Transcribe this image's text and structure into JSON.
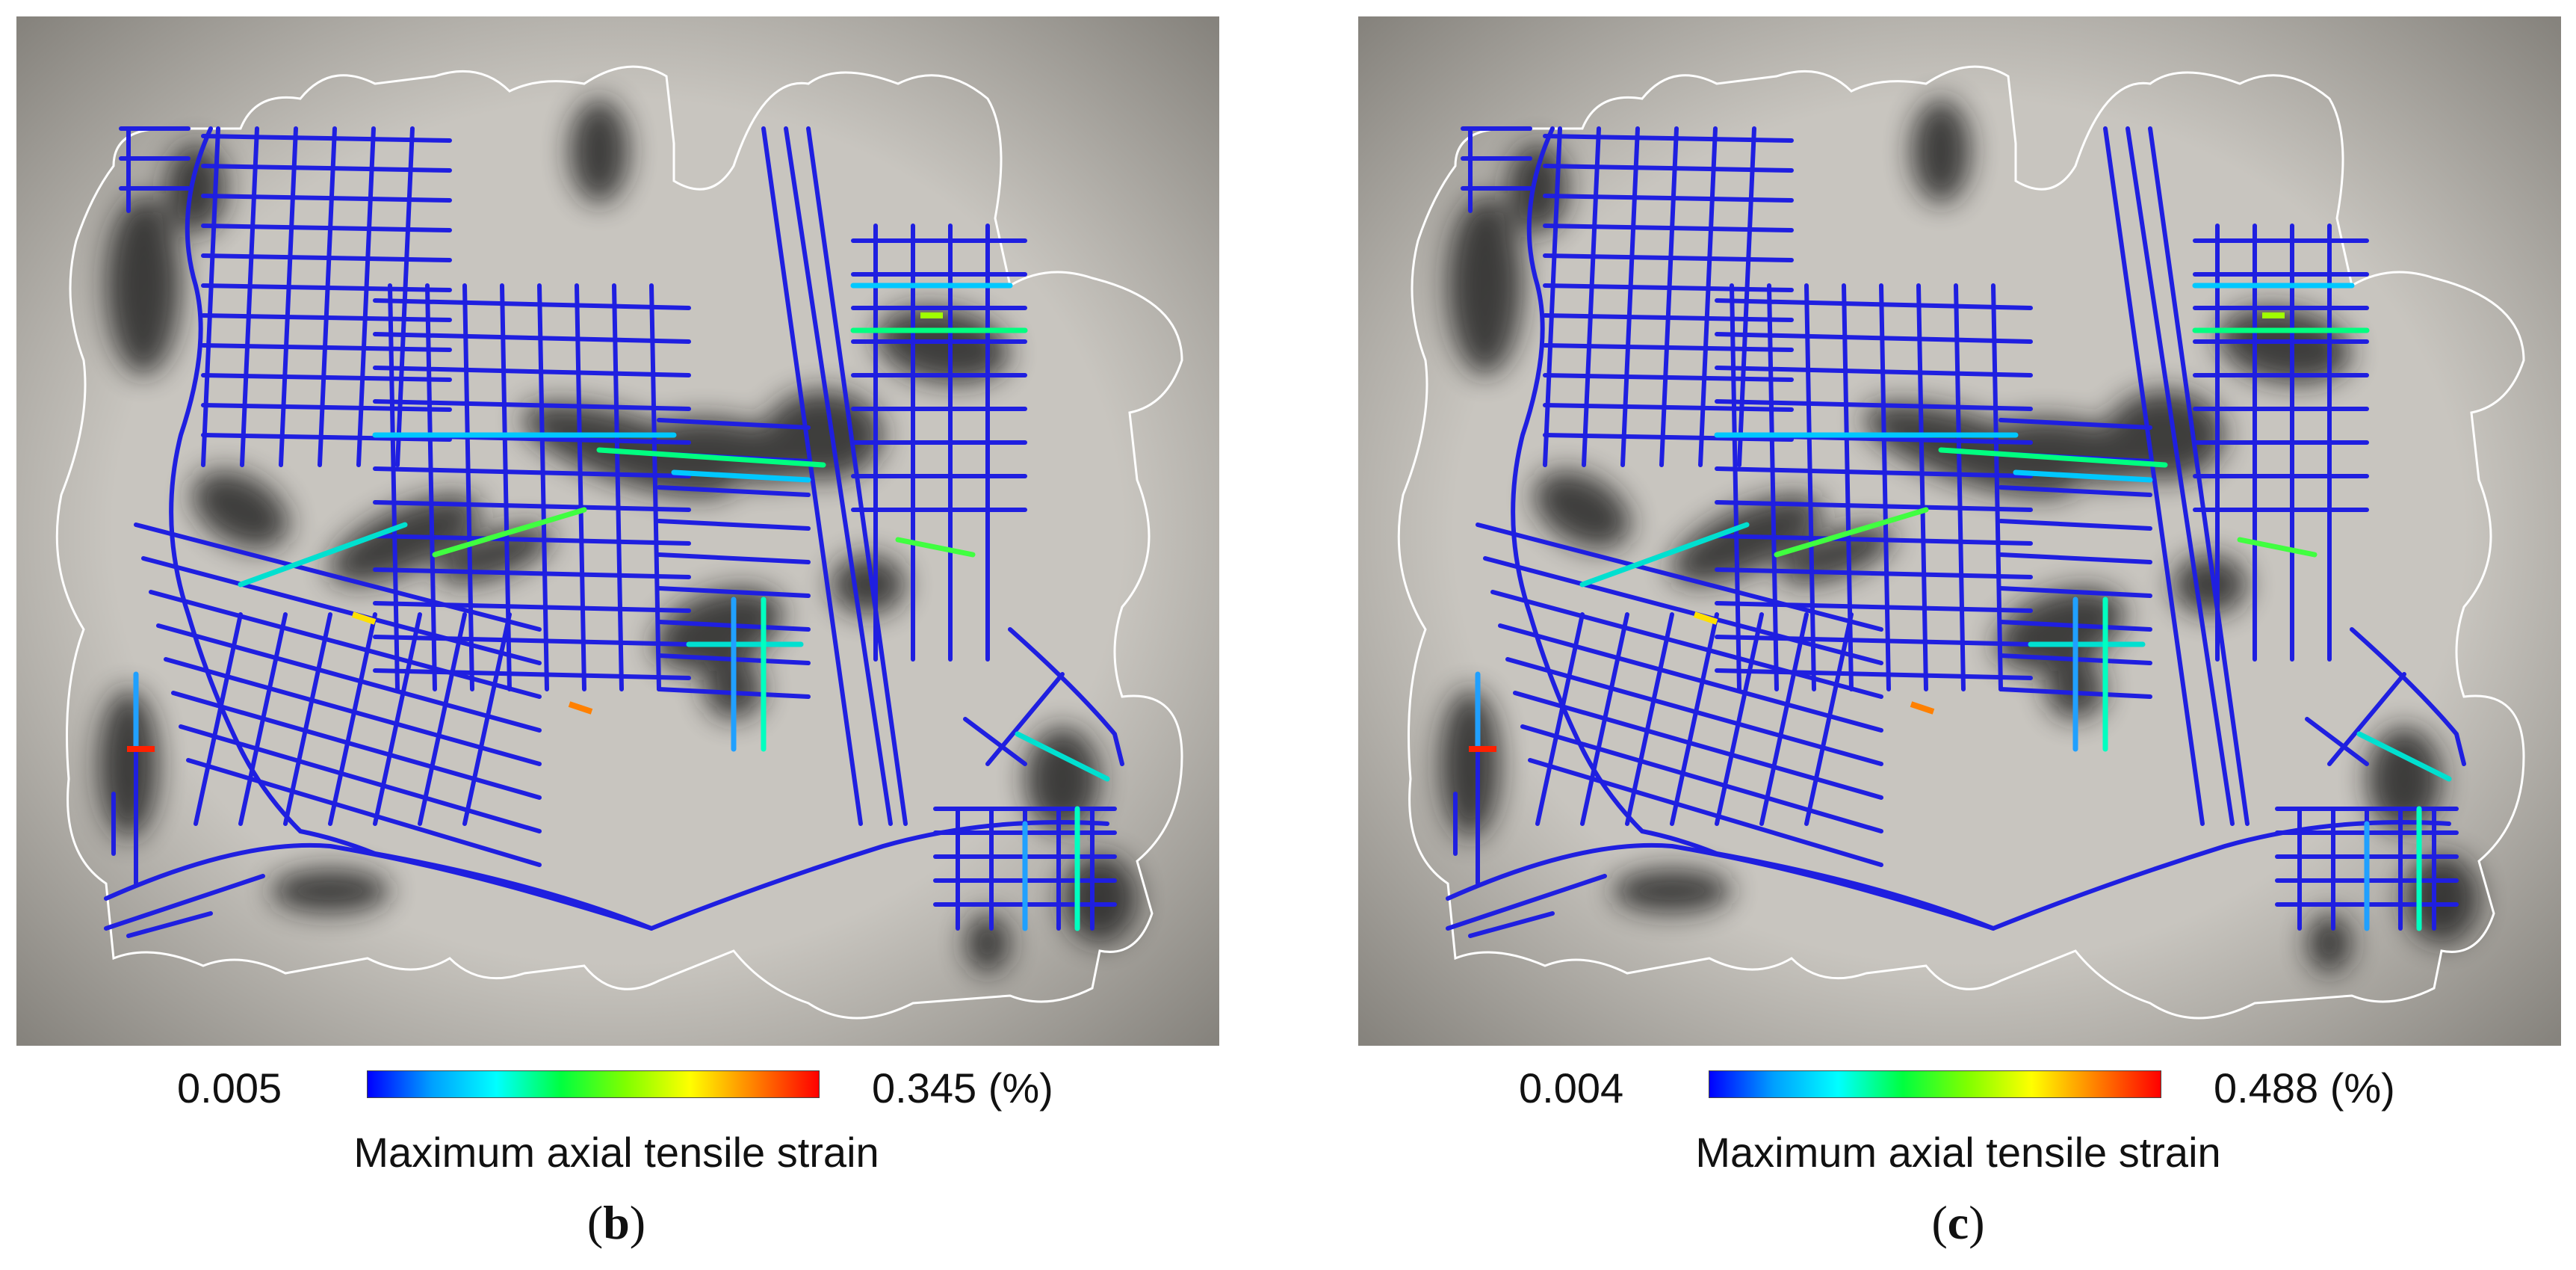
{
  "panels": [
    {
      "id": "b",
      "label_open": "(",
      "label_letter": "b",
      "label_close": ")",
      "legend": {
        "min_label": "0.005",
        "max_label": "0.345 (%)",
        "title": "Maximum axial tensile strain"
      }
    },
    {
      "id": "c",
      "label_open": "(",
      "label_letter": "c",
      "label_close": ")",
      "legend": {
        "min_label": "0.004",
        "max_label": "0.488 (%)",
        "title": "Maximum axial tensile strain"
      }
    }
  ],
  "colors": {
    "pipe": "#1f1fe0",
    "terrain_base": "#c8c5bf",
    "terrain_edge": "#86837d",
    "boundary": "#ffffff",
    "scale": [
      "#0000ff",
      "#00a0ff",
      "#00ffff",
      "#00ff40",
      "#7fff00",
      "#ffff00",
      "#ff8000",
      "#ff0000"
    ]
  }
}
